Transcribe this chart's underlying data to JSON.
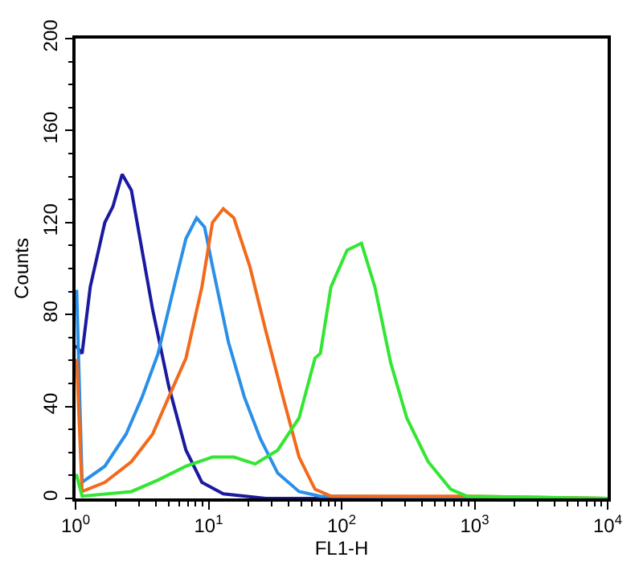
{
  "chart_data": {
    "type": "line",
    "xlabel": "FL1-H",
    "ylabel": "Counts",
    "log": "x",
    "xlim": [
      1,
      10000
    ],
    "ylim": [
      0,
      200
    ],
    "xticks": [
      {
        "value": 1,
        "label": "10$^{0}$"
      },
      {
        "value": 10,
        "label": "10$^{1}$"
      },
      {
        "value": 100,
        "label": "10$^{2}$"
      },
      {
        "value": 1000,
        "label": "10$^{3}$"
      },
      {
        "value": 10000,
        "label": "10$^{4}$"
      }
    ],
    "yticks": [
      0,
      40,
      80,
      120,
      160,
      200
    ],
    "line_style": "solid",
    "marker": "none",
    "series": [
      {
        "color": "#1a1aa0",
        "x": [
          1,
          1.02,
          1.12,
          1.29,
          1.66,
          1.91,
          2.24,
          2.63,
          3.16,
          3.8,
          5.01,
          6.76,
          8.91,
          12.9,
          26.9,
          10000
        ],
        "values": [
          66,
          66,
          63,
          92,
          120,
          127,
          141,
          134,
          108,
          82,
          49,
          21,
          7,
          2,
          0,
          0
        ]
      },
      {
        "color": "#2a8fe8",
        "x": [
          1,
          1.02,
          1.12,
          1.66,
          2.4,
          3.16,
          4.17,
          5.5,
          6.76,
          8.13,
          9.33,
          10.7,
          14.1,
          18.6,
          24.5,
          33.1,
          47.9,
          69.2,
          10000
        ],
        "values": [
          90,
          90,
          7,
          14,
          28,
          44,
          63,
          92,
          113,
          122,
          118,
          101,
          68,
          44,
          26,
          11,
          3,
          1,
          0
        ]
      },
      {
        "color": "#f26a1b",
        "x": [
          1,
          1.02,
          1.12,
          1.66,
          2.63,
          3.8,
          5.01,
          6.76,
          8.91,
          10.7,
          12.9,
          15.5,
          20.4,
          26.9,
          36.3,
          47.9,
          63.1,
          83.2,
          871,
          10000
        ],
        "values": [
          60,
          60,
          3,
          7,
          16,
          28,
          44,
          61,
          92,
          120,
          126,
          122,
          101,
          73,
          44,
          18,
          4,
          1,
          1,
          0
        ]
      },
      {
        "color": "#33e633",
        "x": [
          1,
          1.02,
          1.12,
          2.63,
          4.17,
          6.76,
          10.7,
          15.5,
          22.4,
          33.1,
          47.9,
          63.1,
          69.2,
          83.2,
          110,
          141,
          178,
          234,
          309,
          447,
          661,
          871,
          10000
        ],
        "values": [
          10,
          10,
          1,
          3,
          8,
          14,
          18,
          18,
          15,
          21,
          35,
          61,
          63,
          92,
          108,
          111,
          92,
          59,
          35,
          16,
          4,
          1,
          0
        ]
      }
    ]
  }
}
